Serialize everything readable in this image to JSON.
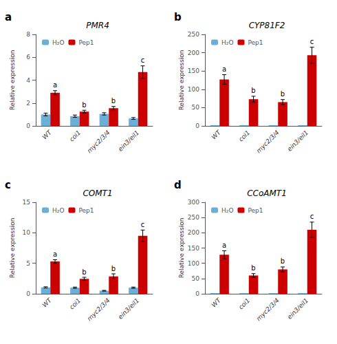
{
  "chart_data": [
    {
      "type": "bar",
      "title": "PMR4",
      "ylabel": "Relative expression",
      "categories": [
        "WT",
        "coi1",
        "myc2/3/4",
        "ein3/eil1"
      ],
      "series": [
        {
          "name": "H₂O",
          "color": "#6baed6",
          "values": [
            1.0,
            0.85,
            1.05,
            0.65
          ],
          "errors": [
            0.12,
            0.1,
            0.1,
            0.08
          ]
        },
        {
          "name": "Pep1",
          "color": "#cc0000",
          "values": [
            2.9,
            1.25,
            1.55,
            4.7
          ],
          "errors": [
            0.18,
            0.12,
            0.15,
            0.55
          ]
        }
      ],
      "ylim": [
        0,
        8
      ],
      "yticks": [
        0,
        2,
        4,
        6,
        8
      ],
      "grid": false,
      "legend": "upper left",
      "annotations": [
        {
          "text": "a"
        },
        {
          "text": "a",
          "category": "WT",
          "series": "Pep1"
        },
        {
          "text": "b",
          "category": "coi1",
          "series": "Pep1"
        },
        {
          "text": "b",
          "category": "myc2/3/4",
          "series": "Pep1"
        },
        {
          "text": "c",
          "category": "ein3/eil1",
          "series": "Pep1"
        }
      ]
    },
    {
      "type": "bar",
      "title": "CYP81F2",
      "ylabel": "Relative expression",
      "categories": [
        "WT",
        "coi1",
        "myc2/3/4",
        "ein3/eil1"
      ],
      "series": [
        {
          "name": "H₂O",
          "color": "#6baed6",
          "values": [
            2.0,
            2.0,
            2.0,
            2.0
          ],
          "errors": [
            0.0,
            0.0,
            0.0,
            0.0
          ]
        },
        {
          "name": "Pep1",
          "color": "#cc0000",
          "values": [
            127,
            73,
            65,
            193
          ],
          "errors": [
            13,
            8,
            7,
            22
          ]
        }
      ],
      "ylim": [
        0,
        250
      ],
      "yticks": [
        0,
        50,
        100,
        150,
        200,
        250
      ],
      "grid": false,
      "legend": "upper left",
      "annotations": [
        {
          "text": "b"
        },
        {
          "text": "a",
          "category": "WT",
          "series": "Pep1"
        },
        {
          "text": "b",
          "category": "coi1",
          "series": "Pep1"
        },
        {
          "text": "b",
          "category": "myc2/3/4",
          "series": "Pep1"
        },
        {
          "text": "c",
          "category": "ein3/eil1",
          "series": "Pep1"
        }
      ]
    },
    {
      "type": "bar",
      "title": "COMT1",
      "ylabel": "Relative expression",
      "categories": [
        "WT",
        "coi1",
        "myc2/3/4",
        "ein3/eil1"
      ],
      "series": [
        {
          "name": "H₂O",
          "color": "#6baed6",
          "values": [
            1.05,
            1.0,
            0.5,
            1.0
          ],
          "errors": [
            0.1,
            0.1,
            0.06,
            0.1
          ]
        },
        {
          "name": "Pep1",
          "color": "#cc0000",
          "values": [
            5.3,
            2.45,
            2.85,
            9.5
          ],
          "errors": [
            0.28,
            0.25,
            0.42,
            0.95
          ]
        }
      ],
      "ylim": [
        0,
        15
      ],
      "yticks": [
        0,
        5,
        10,
        15
      ],
      "grid": false,
      "legend": "upper left",
      "annotations": [
        {
          "text": "c"
        },
        {
          "text": "a",
          "category": "WT",
          "series": "Pep1"
        },
        {
          "text": "b",
          "category": "coi1",
          "series": "Pep1"
        },
        {
          "text": "b",
          "category": "myc2/3/4",
          "series": "Pep1"
        },
        {
          "text": "c",
          "category": "ein3/eil1",
          "series": "Pep1"
        }
      ]
    },
    {
      "type": "bar",
      "title": "CCoAMT1",
      "ylabel": "Relative expression",
      "categories": [
        "WT",
        "coi1",
        "myc2/3/4",
        "ein3/eil1"
      ],
      "series": [
        {
          "name": "H₂O",
          "color": "#6baed6",
          "values": [
            2.0,
            2.0,
            2.0,
            2.0
          ],
          "errors": [
            0.0,
            0.0,
            0.0,
            0.0
          ]
        },
        {
          "name": "Pep1",
          "color": "#cc0000",
          "values": [
            128,
            60,
            80,
            210
          ],
          "errors": [
            13,
            6,
            8,
            25
          ]
        }
      ],
      "ylim": [
        0,
        300
      ],
      "yticks": [
        0,
        50,
        100,
        150,
        200,
        250,
        300
      ],
      "grid": false,
      "legend": "upper left",
      "annotations": [
        {
          "text": "d"
        },
        {
          "text": "a",
          "category": "WT",
          "series": "Pep1"
        },
        {
          "text": "b",
          "category": "coi1",
          "series": "Pep1"
        },
        {
          "text": "b",
          "category": "myc2/3/4",
          "series": "Pep1"
        },
        {
          "text": "c",
          "category": "ein3/eil1",
          "series": "Pep1"
        }
      ]
    }
  ]
}
